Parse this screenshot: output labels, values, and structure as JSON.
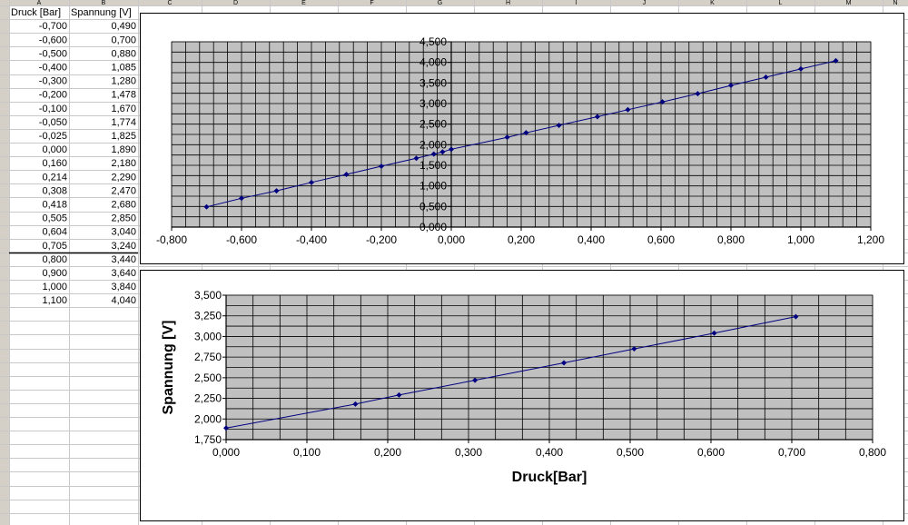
{
  "table": {
    "col_letters": [
      "A",
      "B",
      "C",
      "D",
      "E",
      "F",
      "G",
      "H",
      "I",
      "J",
      "K",
      "L",
      "M",
      "N"
    ],
    "headers": [
      "Druck [Bar]",
      "Spannung [V]"
    ],
    "rows": [
      [
        "-0,700",
        "0,490"
      ],
      [
        "-0,600",
        "0,700"
      ],
      [
        "-0,500",
        "0,880"
      ],
      [
        "-0,400",
        "1,085"
      ],
      [
        "-0,300",
        "1,280"
      ],
      [
        "-0,200",
        "1,478"
      ],
      [
        "-0,100",
        "1,670"
      ],
      [
        "-0,050",
        "1,774"
      ],
      [
        "-0,025",
        "1,825"
      ],
      [
        "0,000",
        "1,890"
      ],
      [
        "0,160",
        "2,180"
      ],
      [
        "0,214",
        "2,290"
      ],
      [
        "0,308",
        "2,470"
      ],
      [
        "0,418",
        "2,680"
      ],
      [
        "0,505",
        "2,850"
      ],
      [
        "0,604",
        "3,040"
      ],
      [
        "0,705",
        "3,240"
      ],
      [
        "0,800",
        "3,440"
      ],
      [
        "0,900",
        "3,640"
      ],
      [
        "1,000",
        "3,840"
      ],
      [
        "1,100",
        "4,040"
      ]
    ]
  },
  "chart_data": [
    {
      "type": "line",
      "title": "",
      "xlabel": "",
      "ylabel": "",
      "xlim": [
        -0.8,
        1.2
      ],
      "ylim": [
        0,
        4.5
      ],
      "xtick_labels": [
        "-0,800",
        "-0,600",
        "-0,400",
        "-0,200",
        "0,000",
        "0,200",
        "0,400",
        "0,600",
        "0,800",
        "1,000",
        "1,200"
      ],
      "ytick_labels": [
        "0,000",
        "0,500",
        "1,000",
        "1,500",
        "2,000",
        "2,500",
        "3,000",
        "3,500",
        "4,000",
        "4,500"
      ],
      "grid": true,
      "plot_bg": "#c0c0c0",
      "series_color": "#000080",
      "x": [
        -0.7,
        -0.6,
        -0.5,
        -0.4,
        -0.3,
        -0.2,
        -0.1,
        -0.05,
        -0.025,
        0,
        0.16,
        0.214,
        0.308,
        0.418,
        0.505,
        0.604,
        0.705,
        0.8,
        0.9,
        1,
        1.1
      ],
      "y": [
        0.49,
        0.7,
        0.88,
        1.085,
        1.28,
        1.478,
        1.67,
        1.774,
        1.825,
        1.89,
        2.18,
        2.29,
        2.47,
        2.68,
        2.85,
        3.04,
        3.24,
        3.44,
        3.64,
        3.84,
        4.04
      ]
    },
    {
      "type": "line",
      "title": "",
      "xlabel": "Druck[Bar]",
      "ylabel": "Spannung [V]",
      "xlim": [
        0,
        0.8
      ],
      "ylim": [
        1.75,
        3.5
      ],
      "xtick_labels": [
        "0,000",
        "0,100",
        "0,200",
        "0,300",
        "0,400",
        "0,500",
        "0,600",
        "0,700",
        "0,800"
      ],
      "ytick_labels": [
        "1,750",
        "2,000",
        "2,250",
        "2,500",
        "2,750",
        "3,000",
        "3,250",
        "3,500"
      ],
      "grid": true,
      "plot_bg": "#c0c0c0",
      "series_color": "#000080",
      "x": [
        0,
        0.16,
        0.214,
        0.308,
        0.418,
        0.505,
        0.604,
        0.705
      ],
      "y": [
        1.89,
        2.18,
        2.29,
        2.47,
        2.68,
        2.85,
        3.04,
        3.24
      ]
    }
  ]
}
